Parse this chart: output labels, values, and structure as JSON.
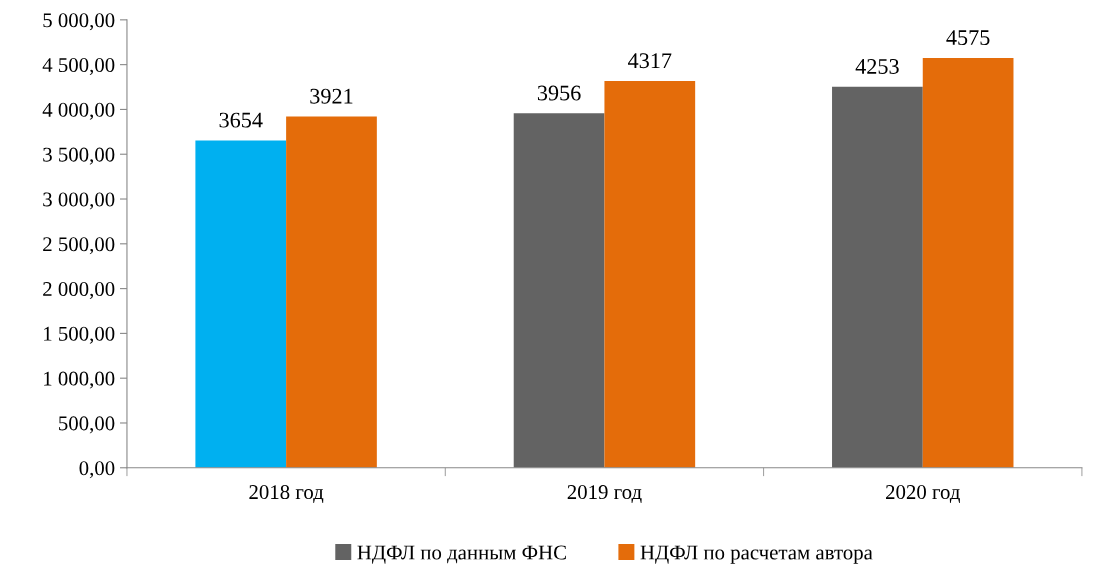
{
  "chart_data": {
    "type": "bar",
    "categories": [
      "2018 год",
      "2019 год",
      "2020 год"
    ],
    "series": [
      {
        "name": "НДФЛ по данным ФНС",
        "color": "#636363",
        "colors": [
          "#00b0f0",
          "#636363",
          "#636363"
        ],
        "values": [
          3654,
          3956,
          4253
        ]
      },
      {
        "name": "НДФЛ по расчетам автора",
        "color": "#e46c0a",
        "values": [
          3921,
          4317,
          4575
        ]
      }
    ],
    "ylim": [
      0,
      5000
    ],
    "yticks": [
      {
        "value": 0,
        "label": "0,00"
      },
      {
        "value": 500,
        "label": "500,00"
      },
      {
        "value": 1000,
        "label": "1 000,00"
      },
      {
        "value": 1500,
        "label": "1 500,00"
      },
      {
        "value": 2000,
        "label": "2 000,00"
      },
      {
        "value": 2500,
        "label": "2 500,00"
      },
      {
        "value": 3000,
        "label": "3 000,00"
      },
      {
        "value": 3500,
        "label": "3 500,00"
      },
      {
        "value": 4000,
        "label": "4 000,00"
      },
      {
        "value": 4500,
        "label": "4 500,00"
      },
      {
        "value": 5000,
        "label": "5 000,00"
      }
    ],
    "data_labels": true,
    "grid": false,
    "legend": "bottom"
  }
}
